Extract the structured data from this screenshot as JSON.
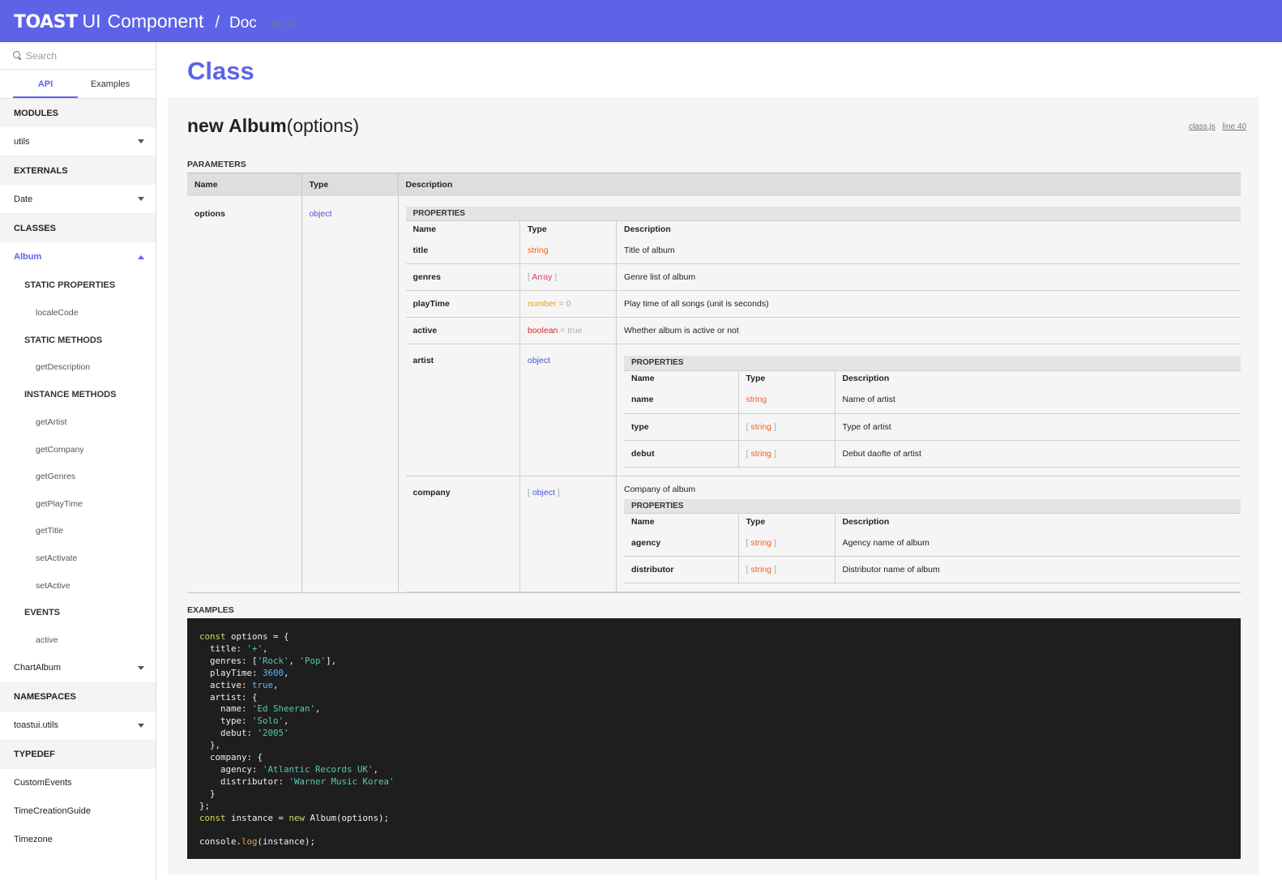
{
  "header": {
    "logo_toast": "TOAST",
    "logo_ui": "UI",
    "logo_component": "Component",
    "separator": "/",
    "doc": "Doc",
    "version": "v1.0.0"
  },
  "sidebar": {
    "search_placeholder": "Search",
    "tabs": [
      "API",
      "Examples"
    ],
    "sections": {
      "modules": "MODULES",
      "utils": "utils",
      "externals": "EXTERNALS",
      "date": "Date",
      "classes": "CLASSES",
      "album": "Album",
      "static_props": "STATIC PROPERTIES",
      "localeCode": "localeCode",
      "static_methods": "STATIC METHODS",
      "getDescription": "getDescription",
      "instance_methods": "INSTANCE METHODS",
      "instance_items": [
        "getArtist",
        "getCompany",
        "getGenres",
        "getPlayTime",
        "getTitle",
        "setActivate",
        "setActive"
      ],
      "events": "EVENTS",
      "active": "active",
      "chartAlbum": "ChartAlbum",
      "namespaces": "NAMESPACES",
      "toastui_utils": "toastui.utils",
      "typedef": "TYPEDEF",
      "typedef_items": [
        "CustomEvents",
        "TimeCreationGuide",
        "Timezone"
      ]
    }
  },
  "main": {
    "title": "Class",
    "signature": {
      "keyword": "new",
      "name": "Album",
      "params": "(options)"
    },
    "source": {
      "file": "class.js",
      "line": "line 40"
    },
    "parameters_label": "PARAMETERS",
    "columns": [
      "Name",
      "Type",
      "Description"
    ],
    "param": {
      "name": "options",
      "type": "object"
    },
    "properties_label": "PROPERTIES",
    "props": {
      "title": {
        "name": "title",
        "type": "string",
        "desc": "Title of album"
      },
      "genres": {
        "name": "genres",
        "type": "Array",
        "desc": "Genre list of album"
      },
      "playTime": {
        "name": "playTime",
        "type": "number",
        "default": "= 0",
        "desc": "Play time of all songs (unit is seconds)"
      },
      "active": {
        "name": "active",
        "type": "boolean",
        "default": "= true",
        "desc": "Whether album is active or not"
      },
      "artist": {
        "name": "artist",
        "type": "object"
      },
      "company": {
        "name": "company",
        "type": "object",
        "desc": "Company of album"
      }
    },
    "artist_props": [
      {
        "name": "name",
        "type": "string",
        "desc": "Name of artist"
      },
      {
        "name": "type",
        "type": "string",
        "desc": "Type of artist"
      },
      {
        "name": "debut",
        "type": "string",
        "desc": "Debut daofte of artist"
      }
    ],
    "company_props": [
      {
        "name": "agency",
        "type": "string",
        "desc": "Agency name of album"
      },
      {
        "name": "distributor",
        "type": "string",
        "desc": "Distributor name of album"
      }
    ],
    "bracket_open": "[",
    "bracket_close": "]",
    "examples_label": "EXAMPLES",
    "code": {
      "kw_const": "const",
      "kw_new": "new",
      "kw_true": "true",
      "options_decl": " options = {",
      "title_key": "  title: ",
      "title_val": "'+'",
      "genres_key": "  genres: [",
      "genres_val1": "'Rock'",
      "genres_sep": ", ",
      "genres_val2": "'Pop'",
      "genres_end": "],",
      "playtime_key": "  playTime: ",
      "playtime_val": "3600",
      "active_key": "  active: ",
      "artist_open": "  artist: {",
      "name_key": "    name: ",
      "name_val": "'Ed Sheeran'",
      "type_key": "    type: ",
      "type_val": "'Solo'",
      "debut_key": "    debut: ",
      "debut_val": "'2005'",
      "artist_close": "  },",
      "company_open": "  company: {",
      "agency_key": "    agency: ",
      "agency_val": "'Atlantic Records UK'",
      "dist_key": "    distributor: ",
      "dist_val": "'Warner Music Korea'",
      "company_close": "  }",
      "obj_close": "};",
      "instance_decl": " instance = ",
      "instance_call": " Album(options);",
      "console": "console.",
      "log": "log",
      "log_arg": "(instance);",
      "comma": ","
    }
  }
}
